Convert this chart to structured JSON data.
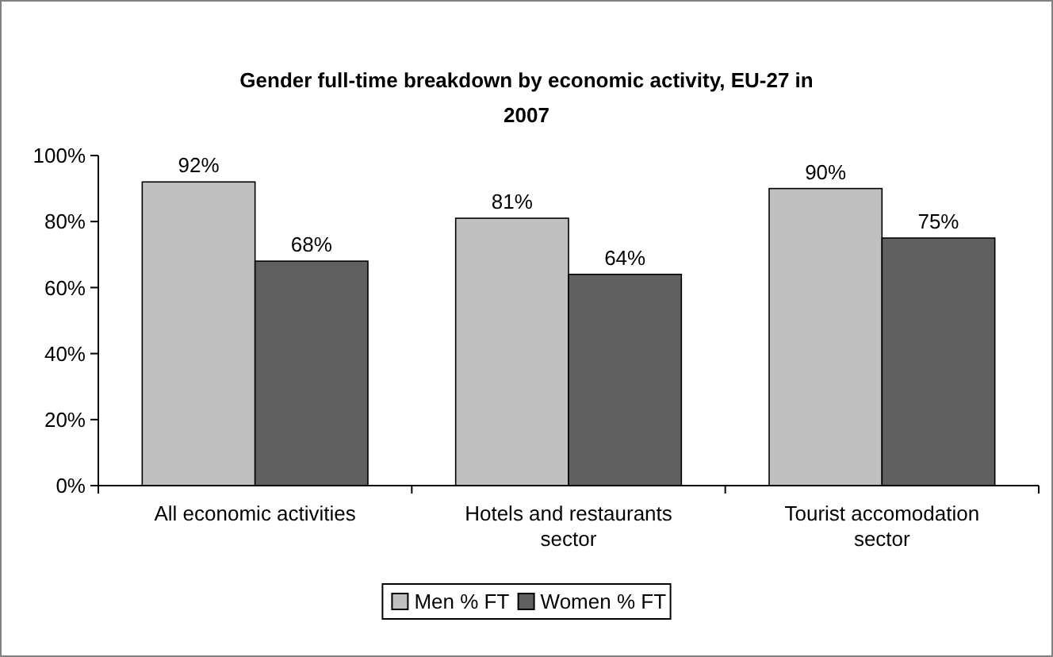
{
  "chart_data": {
    "type": "bar",
    "title": "Gender full-time breakdown by economic activity, EU-27 in 2007",
    "categories": [
      "All economic activities",
      "Hotels and restaurants sector",
      "Tourist accomodation sector"
    ],
    "series": [
      {
        "name": "Men % FT",
        "color": "#c0c0c0",
        "values": [
          92,
          81,
          90
        ],
        "value_labels": [
          "92%",
          "81%",
          "90%"
        ]
      },
      {
        "name": "Women % FT",
        "color": "#606060",
        "values": [
          68,
          64,
          75
        ],
        "value_labels": [
          "68%",
          "64%",
          "75%"
        ]
      }
    ],
    "ylim": [
      0,
      100
    ],
    "yticks": [
      {
        "value": 0,
        "label": "0%"
      },
      {
        "value": 20,
        "label": "20%"
      },
      {
        "value": 40,
        "label": "40%"
      },
      {
        "value": 60,
        "label": "60%"
      },
      {
        "value": 80,
        "label": "80%"
      },
      {
        "value": 100,
        "label": "100%"
      }
    ],
    "grid": false,
    "legend": "bottom"
  }
}
